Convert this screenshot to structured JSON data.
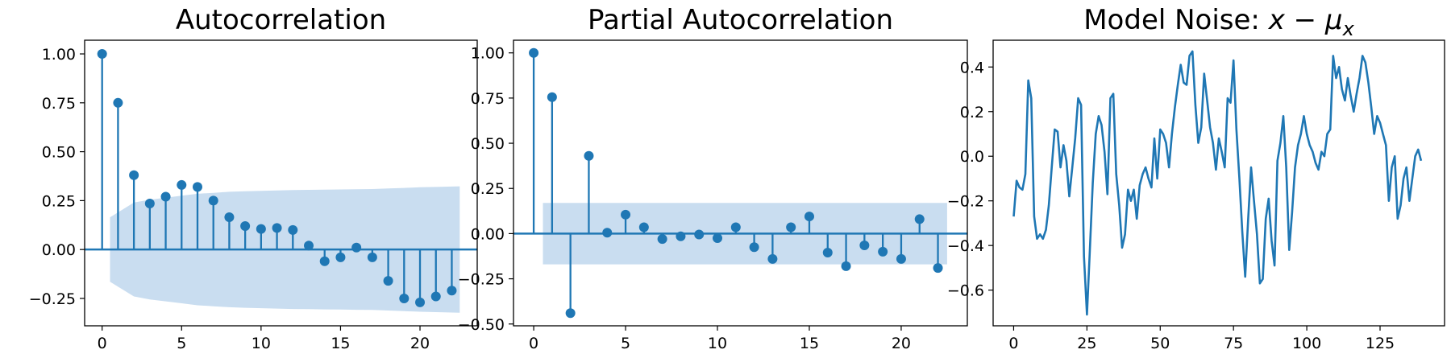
{
  "colors": {
    "series": "#1f77b4",
    "band": "#c6dbef",
    "axis": "#000000",
    "zero_line": "#1f77b4"
  },
  "chart_data": [
    {
      "type": "stem",
      "title": "Autocorrelation",
      "xlabel": "",
      "ylabel": "",
      "grid": false,
      "xlim": [
        -1.1,
        23.6
      ],
      "ylim": [
        -0.39,
        1.07
      ],
      "xticks": [
        0,
        5,
        10,
        15,
        20
      ],
      "xtick_labels": [
        "0",
        "5",
        "10",
        "15",
        "20"
      ],
      "yticks": [
        -0.25,
        0,
        0.25,
        0.5,
        0.75,
        1.0
      ],
      "ytick_labels": [
        "−0.25",
        "0.00",
        "0.25",
        "0.50",
        "0.75",
        "1.00"
      ],
      "x": [
        0,
        1,
        2,
        3,
        4,
        5,
        6,
        7,
        8,
        9,
        10,
        11,
        12,
        13,
        14,
        15,
        16,
        17,
        18,
        19,
        20,
        21,
        22
      ],
      "values": [
        1.0,
        0.75,
        0.38,
        0.235,
        0.27,
        0.33,
        0.32,
        0.25,
        0.165,
        0.12,
        0.105,
        0.11,
        0.1,
        0.02,
        -0.06,
        -0.04,
        0.01,
        -0.04,
        -0.16,
        -0.25,
        -0.27,
        -0.24,
        -0.21
      ],
      "confint_band": {
        "x": [
          0.5,
          1,
          2,
          3,
          4,
          5,
          6,
          7,
          8,
          9,
          10,
          11,
          12,
          13,
          14,
          15,
          16,
          17,
          18,
          19,
          20,
          21,
          22,
          22.5
        ],
        "upper": [
          0.165,
          0.19,
          0.24,
          0.255,
          0.265,
          0.275,
          0.285,
          0.29,
          0.295,
          0.298,
          0.3,
          0.302,
          0.304,
          0.305,
          0.306,
          0.307,
          0.308,
          0.309,
          0.312,
          0.315,
          0.318,
          0.32,
          0.322,
          0.323
        ],
        "lower": [
          -0.165,
          -0.19,
          -0.24,
          -0.255,
          -0.265,
          -0.275,
          -0.285,
          -0.29,
          -0.295,
          -0.298,
          -0.3,
          -0.302,
          -0.304,
          -0.305,
          -0.306,
          -0.307,
          -0.308,
          -0.309,
          -0.312,
          -0.315,
          -0.318,
          -0.32,
          -0.322,
          -0.323
        ]
      }
    },
    {
      "type": "stem",
      "title": "Partial Autocorrelation",
      "xlabel": "",
      "ylabel": "",
      "grid": false,
      "xlim": [
        -1.1,
        23.6
      ],
      "ylim": [
        -0.51,
        1.07
      ],
      "xticks": [
        0,
        5,
        10,
        15,
        20
      ],
      "xtick_labels": [
        "0",
        "5",
        "10",
        "15",
        "20"
      ],
      "yticks": [
        -0.5,
        -0.25,
        0,
        0.25,
        0.5,
        0.75,
        1.0
      ],
      "ytick_labels": [
        "−0.50",
        "−0.25",
        "0.00",
        "0.25",
        "0.50",
        "0.75",
        "1.00"
      ],
      "x": [
        0,
        1,
        2,
        3,
        4,
        5,
        6,
        7,
        8,
        9,
        10,
        11,
        12,
        13,
        14,
        15,
        16,
        17,
        18,
        19,
        20,
        21,
        22
      ],
      "values": [
        1.0,
        0.755,
        -0.44,
        0.43,
        0.005,
        0.105,
        0.035,
        -0.03,
        -0.015,
        -0.005,
        -0.025,
        0.035,
        -0.075,
        -0.14,
        0.035,
        0.095,
        -0.105,
        -0.18,
        -0.065,
        -0.1,
        -0.14,
        0.08,
        -0.19
      ],
      "confint_band": {
        "x": [
          0.5,
          22.5
        ],
        "upper": [
          0.17,
          0.17
        ],
        "lower": [
          -0.17,
          -0.17
        ]
      }
    },
    {
      "type": "line",
      "title_prefix": "Model Noise: ",
      "title_math": {
        "x": "x",
        "op": "−",
        "mu": "μ",
        "sub": "x"
      },
      "xlabel": "",
      "ylabel": "",
      "grid": false,
      "xlim": [
        -7,
        147
      ],
      "ylim": [
        -0.76,
        0.52
      ],
      "xticks": [
        0,
        25,
        50,
        75,
        100,
        125
      ],
      "xtick_labels": [
        "0",
        "25",
        "50",
        "75",
        "100",
        "125"
      ],
      "yticks": [
        -0.6,
        -0.4,
        -0.2,
        0.0,
        0.2,
        0.4
      ],
      "ytick_labels": [
        "−0.6",
        "−0.4",
        "−0.2",
        "0.0",
        "0.2",
        "0.4"
      ],
      "series": [
        {
          "values": [
            -0.27,
            -0.11,
            -0.14,
            -0.15,
            -0.08,
            0.34,
            0.26,
            -0.27,
            -0.37,
            -0.35,
            -0.37,
            -0.33,
            -0.22,
            -0.05,
            0.12,
            0.11,
            -0.05,
            0.05,
            -0.02,
            -0.18,
            -0.05,
            0.08,
            0.26,
            0.23,
            -0.45,
            -0.71,
            -0.42,
            -0.12,
            0.1,
            0.18,
            0.14,
            0.02,
            -0.17,
            0.26,
            0.28,
            -0.08,
            -0.22,
            -0.41,
            -0.35,
            -0.15,
            -0.2,
            -0.15,
            -0.28,
            -0.13,
            -0.08,
            -0.05,
            -0.1,
            -0.14,
            0.08,
            -0.1,
            0.12,
            0.1,
            0.06,
            -0.05,
            0.1,
            0.22,
            0.32,
            0.41,
            0.33,
            0.32,
            0.45,
            0.47,
            0.23,
            0.06,
            0.13,
            0.37,
            0.25,
            0.13,
            0.06,
            -0.06,
            0.08,
            0.02,
            -0.05,
            0.26,
            0.24,
            0.43,
            0.12,
            -0.1,
            -0.34,
            -0.54,
            -0.28,
            -0.05,
            -0.2,
            -0.35,
            -0.57,
            -0.55,
            -0.28,
            -0.19,
            -0.38,
            -0.49,
            -0.02,
            0.06,
            0.18,
            -0.05,
            -0.42,
            -0.25,
            -0.05,
            0.05,
            0.1,
            0.18,
            0.1,
            0.05,
            0.02,
            -0.03,
            -0.06,
            0.02,
            0.0,
            0.1,
            0.12,
            0.45,
            0.35,
            0.4,
            0.3,
            0.25,
            0.35,
            0.27,
            0.2,
            0.28,
            0.35,
            0.45,
            0.42,
            0.33,
            0.22,
            0.1,
            0.18,
            0.15,
            0.1,
            0.05,
            -0.2,
            -0.05,
            0.0,
            -0.28,
            -0.22,
            -0.1,
            -0.05,
            -0.2,
            -0.1,
            0.0,
            0.03,
            -0.02
          ]
        }
      ]
    }
  ]
}
